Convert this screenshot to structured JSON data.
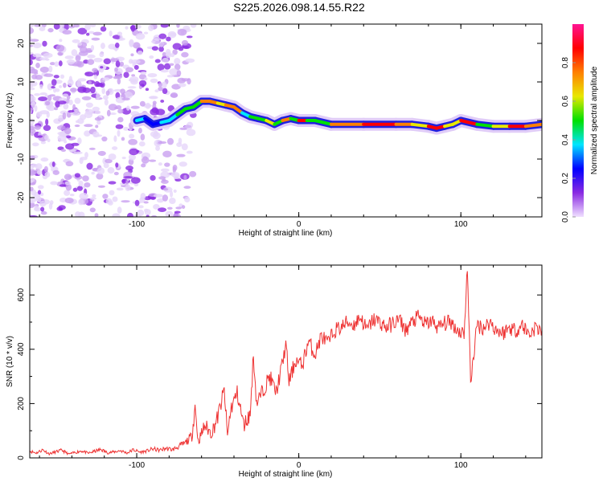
{
  "title": "S225.2026.098.14.55.R22",
  "chart_data": [
    {
      "type": "heatmap",
      "title": "S225.2026.098.14.55.R22",
      "xlabel": "Height of straight line (km)",
      "ylabel": "Frequency (Hz)",
      "xlim": [
        -166,
        150
      ],
      "ylim": [
        -25,
        25
      ],
      "xticks": [
        -100,
        0,
        100
      ],
      "yticks": [
        -20,
        -10,
        0,
        10,
        20
      ],
      "colorbar": {
        "label": "Normalized spectral amplitude",
        "ticks": [
          "0.0",
          "0.2",
          "0.4",
          "0.6",
          "0.8"
        ],
        "range": [
          0,
          1
        ],
        "colors": [
          "#f0e0ff",
          "#8a2be2",
          "#0000ff",
          "#00e5ff",
          "#00e000",
          "#e8e800",
          "#ff8000",
          "#ff0000",
          "#ff1493"
        ]
      },
      "ridge": {
        "x": [
          -100,
          -95,
          -90,
          -85,
          -80,
          -75,
          -70,
          -65,
          -60,
          -55,
          -50,
          -45,
          -40,
          -35,
          -30,
          -25,
          -20,
          -15,
          -10,
          -5,
          0,
          5,
          10,
          20,
          40,
          60,
          70,
          80,
          85,
          90,
          95,
          100,
          110,
          120,
          130,
          140,
          150
        ],
        "freq": [
          0,
          0.5,
          -1,
          -0.5,
          0,
          1.5,
          3,
          3.5,
          5,
          5,
          4.5,
          4,
          3.5,
          2,
          1,
          0.5,
          0,
          -1,
          0,
          0.5,
          0,
          0,
          0,
          -1,
          -1,
          -1,
          -1,
          -1.5,
          -2,
          -1.5,
          -1,
          0,
          -1,
          -1.5,
          -1.5,
          -1.5,
          -1
        ],
        "amplitude": [
          0.35,
          0.3,
          0.3,
          0.35,
          0.4,
          0.45,
          0.45,
          0.5,
          0.7,
          0.75,
          0.65,
          0.7,
          0.75,
          0.4,
          0.55,
          0.5,
          0.6,
          0.5,
          0.7,
          0.5,
          0.9,
          0.5,
          0.5,
          0.75,
          0.9,
          0.8,
          0.6,
          0.9,
          0.85,
          0.6,
          0.6,
          0.9,
          0.5,
          0.6,
          0.9,
          0.8,
          0.45
        ]
      },
      "noise_region_x": [
        -166,
        -80
      ]
    },
    {
      "type": "line",
      "xlabel": "Height of straight line (km)",
      "ylabel": "SNR (10 * v/v)",
      "xlim": [
        -166,
        150
      ],
      "ylim": [
        0,
        710
      ],
      "xticks": [
        -100,
        0,
        100
      ],
      "yticks": [
        0,
        200,
        400,
        600
      ],
      "color": "#ee3333",
      "x": [
        -166,
        -162,
        -158,
        -154,
        -150,
        -146,
        -142,
        -138,
        -134,
        -130,
        -126,
        -122,
        -118,
        -114,
        -110,
        -106,
        -102,
        -98,
        -94,
        -90,
        -86,
        -82,
        -78,
        -74,
        -70,
        -66,
        -64,
        -62,
        -58,
        -54,
        -50,
        -46,
        -44,
        -42,
        -38,
        -34,
        -30,
        -28,
        -26,
        -22,
        -18,
        -14,
        -10,
        -8,
        -6,
        -2,
        2,
        6,
        10,
        14,
        18,
        22,
        26,
        30,
        34,
        38,
        42,
        46,
        50,
        54,
        58,
        62,
        66,
        70,
        74,
        78,
        82,
        86,
        90,
        94,
        98,
        102,
        104,
        106,
        110,
        114,
        118,
        122,
        126,
        130,
        134,
        138,
        142,
        146,
        150
      ],
      "y": [
        25,
        18,
        30,
        15,
        22,
        28,
        14,
        20,
        26,
        17,
        24,
        31,
        19,
        22,
        27,
        18,
        30,
        21,
        25,
        33,
        28,
        35,
        30,
        42,
        55,
        80,
        190,
        60,
        120,
        90,
        150,
        250,
        80,
        180,
        240,
        120,
        160,
        380,
        200,
        250,
        300,
        240,
        350,
        420,
        280,
        360,
        340,
        430,
        380,
        450,
        420,
        470,
        480,
        500,
        490,
        520,
        470,
        510,
        500,
        480,
        495,
        510,
        470,
        500,
        520,
        490,
        505,
        480,
        495,
        500,
        470,
        460,
        700,
        280,
        490,
        480,
        500,
        470,
        460,
        480,
        470,
        490,
        455,
        480,
        470
      ]
    }
  ]
}
